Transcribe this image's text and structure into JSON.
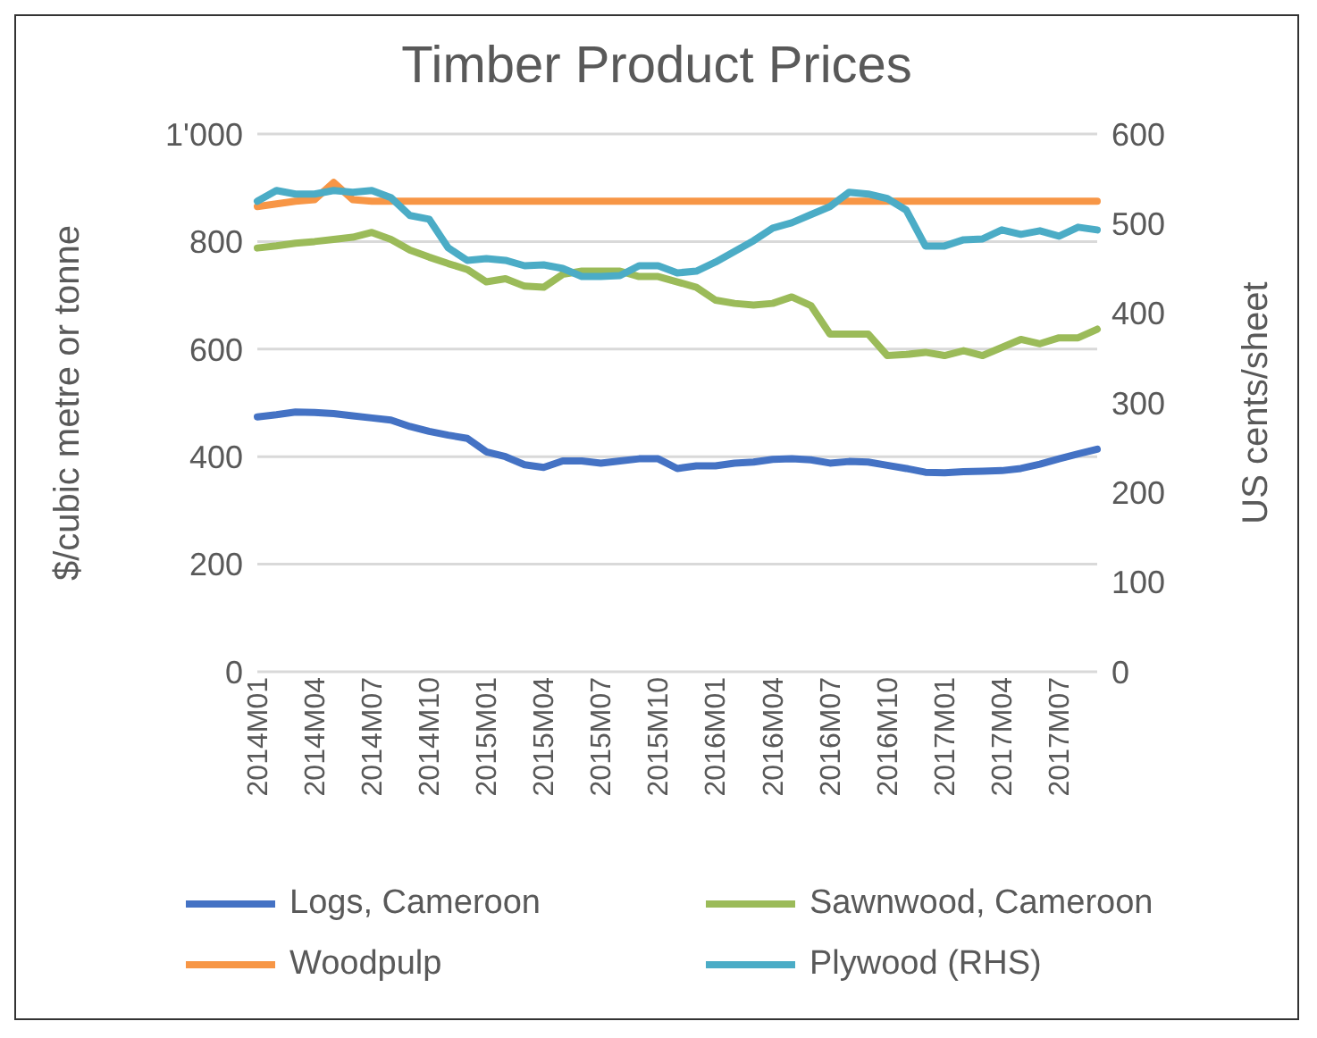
{
  "chart_data": {
    "type": "line",
    "title": "Timber Product Prices",
    "ylabel": "$/cubic metre or tonne",
    "y2label": "US cents/sheet",
    "categories": [
      "2014M01",
      null,
      null,
      "2014M04",
      null,
      null,
      "2014M07",
      null,
      null,
      "2014M10",
      null,
      null,
      "2015M01",
      null,
      null,
      "2015M04",
      null,
      null,
      "2015M07",
      null,
      null,
      "2015M10",
      null,
      null,
      "2016M01",
      null,
      null,
      "2016M04",
      null,
      null,
      "2016M07",
      null,
      null,
      "2016M10",
      null,
      null,
      "2017M01",
      null,
      null,
      "2017M04",
      null,
      null,
      "2017M07",
      null,
      null
    ],
    "series": [
      {
        "name": "Logs, Cameroon",
        "color": "#4472c4",
        "values": [
          474,
          478,
          483,
          482,
          480,
          476,
          472,
          468,
          456,
          447,
          440,
          434,
          409,
          400,
          385,
          380,
          392,
          392,
          388,
          392,
          396,
          396,
          378,
          383,
          383,
          388,
          390,
          395,
          396,
          394,
          388,
          391,
          390,
          384,
          378,
          371,
          370,
          372,
          373,
          374,
          378,
          386,
          396,
          405,
          414
        ]
      },
      {
        "name": "Sawnwood, Cameroon",
        "color": "#9bbb59",
        "values": [
          788,
          792,
          797,
          800,
          804,
          808,
          817,
          804,
          784,
          771,
          759,
          748,
          725,
          731,
          717,
          715,
          739,
          745,
          745,
          745,
          735,
          735,
          725,
          715,
          691,
          685,
          682,
          685,
          697,
          681,
          628,
          628,
          628,
          588,
          590,
          594,
          588,
          597,
          588,
          603,
          618,
          610,
          621,
          621,
          637
        ]
      },
      {
        "name": "Woodpulp",
        "color": "#f79646",
        "values": [
          865,
          870,
          875,
          878,
          910,
          878,
          875,
          875,
          875,
          875,
          875,
          875,
          875,
          875,
          875,
          875,
          875,
          875,
          875,
          875,
          875,
          875,
          875,
          875,
          875,
          875,
          875,
          875,
          875,
          875,
          875,
          875,
          875,
          875,
          875,
          875,
          875,
          875,
          875,
          875,
          875,
          875,
          875,
          875,
          875
        ]
      },
      {
        "name": "Plywood (RHS)",
        "color": "#4bacc6",
        "axis": "y2",
        "values": [
          525,
          537,
          533,
          533,
          537,
          535,
          537,
          529,
          509,
          505,
          473,
          459,
          461,
          459,
          453,
          454,
          450,
          441,
          441,
          442,
          453,
          453,
          445,
          447,
          457,
          469,
          481,
          495,
          501,
          510,
          519,
          535,
          533,
          528,
          515,
          475,
          475,
          482,
          483,
          493,
          488,
          492,
          486,
          496,
          493
        ]
      }
    ],
    "ylim": [
      0,
      1000
    ],
    "yticks": [
      0,
      200,
      400,
      600,
      800,
      {
        "value": 1000,
        "label": "1'000"
      }
    ],
    "y2lim": [
      0,
      600
    ],
    "y2ticks": [
      0,
      100,
      200,
      300,
      400,
      500,
      600
    ],
    "grid": "y",
    "legend": "bottom",
    "marker": "none",
    "line_style": "solid"
  }
}
